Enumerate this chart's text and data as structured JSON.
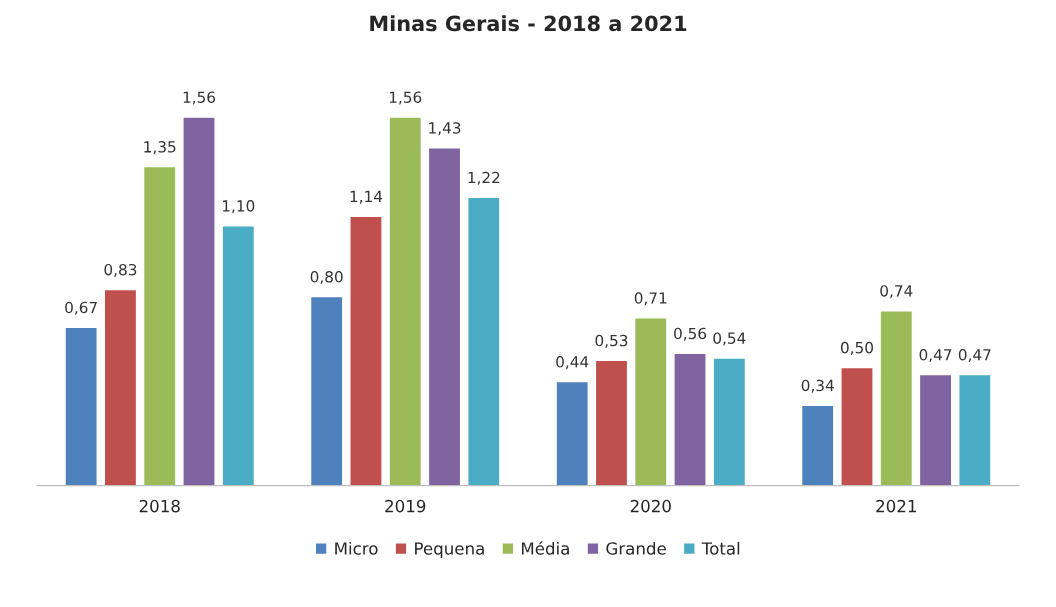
{
  "chart_data": {
    "type": "bar",
    "title": "Minas Gerais - 2018 a 2021",
    "categories": [
      "2018",
      "2019",
      "2020",
      "2021"
    ],
    "series": [
      {
        "name": "Micro",
        "color": "#4f81bd",
        "values": [
          0.67,
          0.8,
          0.44,
          0.34
        ],
        "value_labels": [
          "0,67",
          "0,80",
          "0,44",
          "0,34"
        ]
      },
      {
        "name": "Pequena",
        "color": "#c0504d",
        "values": [
          0.83,
          1.14,
          0.53,
          0.5
        ],
        "value_labels": [
          "0,83",
          "1,14",
          "0,53",
          "0,50"
        ]
      },
      {
        "name": "Média",
        "color": "#9bbb59",
        "values": [
          1.35,
          1.56,
          0.71,
          0.74
        ],
        "value_labels": [
          "1,35",
          "1,56",
          "0,71",
          "0,74"
        ]
      },
      {
        "name": "Grande",
        "color": "#8064a2",
        "values": [
          1.56,
          1.43,
          0.56,
          0.47
        ],
        "value_labels": [
          "1,56",
          "1,43",
          "0,56",
          "0,47"
        ]
      },
      {
        "name": "Total",
        "color": "#4bacc6",
        "values": [
          1.1,
          1.22,
          0.54,
          0.47
        ],
        "value_labels": [
          "1,10",
          "1,22",
          "0,54",
          "0,47"
        ]
      }
    ],
    "tick_labels": "x",
    "grid": false,
    "legend": "bottom"
  }
}
